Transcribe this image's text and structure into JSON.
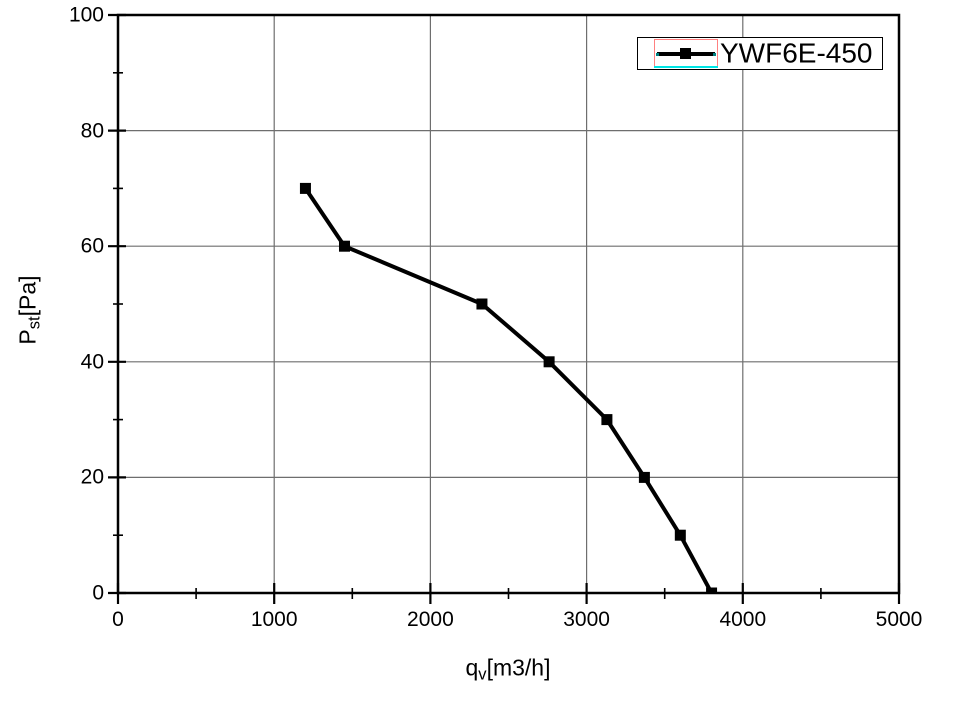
{
  "chart_data": {
    "type": "line",
    "title": "",
    "series": [
      {
        "name": "YWF6E-450",
        "x": [
          1200,
          1450,
          2330,
          2760,
          3130,
          3370,
          3600,
          3800
        ],
        "y": [
          70,
          60,
          50,
          40,
          30,
          20,
          10,
          0
        ],
        "color": "#000000",
        "marker": "square",
        "marker_size": 11,
        "line_width": 4
      }
    ],
    "xlabel": {
      "text": "qv[m3/h]",
      "main": "q",
      "sub": "v",
      "rest": "[m3/h]"
    },
    "ylabel": {
      "text": "Pst[Pa]",
      "main": "P",
      "sub": "st",
      "rest": "[Pa]"
    },
    "xlim": [
      0,
      5000
    ],
    "ylim": [
      0,
      100
    ],
    "x_major_ticks": [
      0,
      1000,
      2000,
      3000,
      4000,
      5000
    ],
    "x_minor_step": 500,
    "y_major_ticks": [
      0,
      20,
      40,
      60,
      80,
      100
    ],
    "y_minor_step": 10,
    "grid": "major",
    "legend_position": "top-right"
  },
  "legend": {
    "label": "YWF6E-450",
    "highlight_color": "#ff8080",
    "underline_color": "#00e5e5",
    "handle_color": "#007f7f"
  },
  "colors": {
    "background": "#ffffff",
    "axis": "#000000",
    "grid": "#6e6e6e",
    "series": "#000000",
    "text": "#000000"
  }
}
